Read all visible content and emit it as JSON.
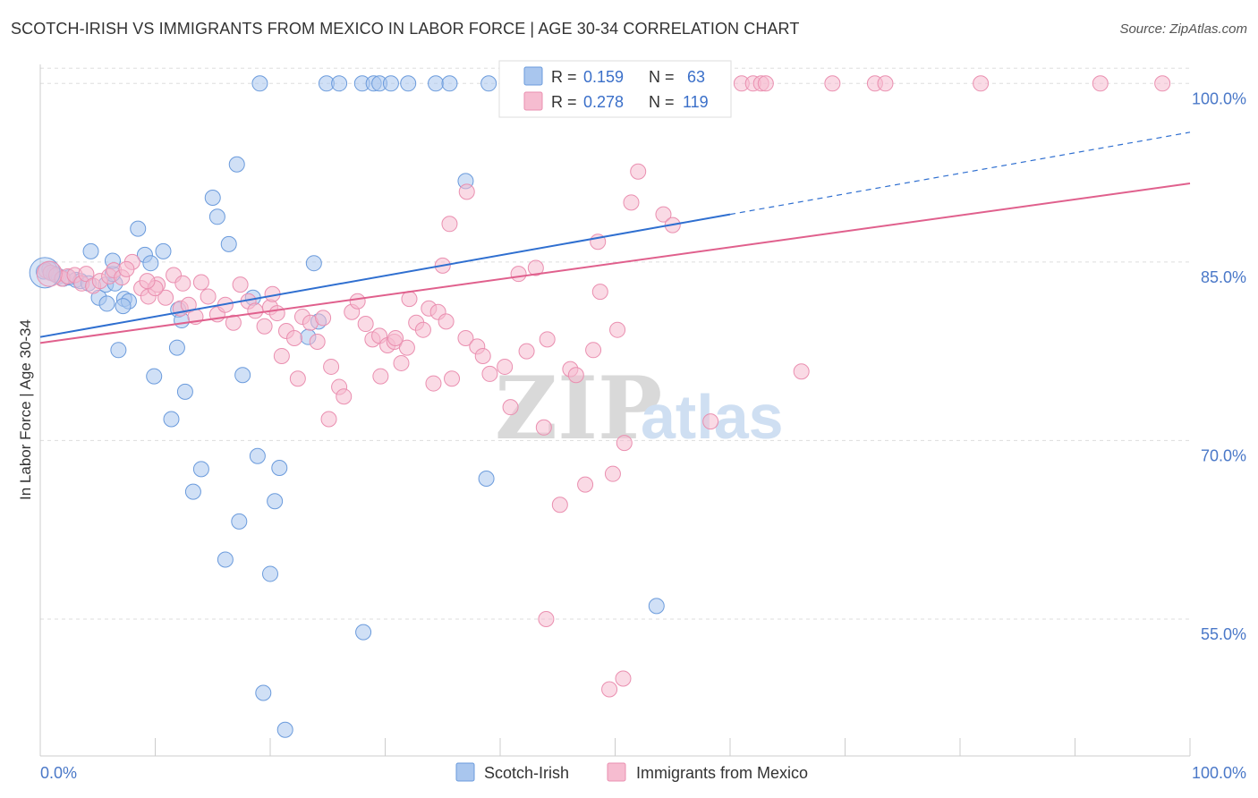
{
  "title": "SCOTCH-IRISH VS IMMIGRANTS FROM MEXICO IN LABOR FORCE | AGE 30-34 CORRELATION CHART",
  "source": "Source: ZipAtlas.com",
  "watermark": {
    "zip": "ZIP",
    "atlas": "atlas"
  },
  "colors": {
    "blue_fill": "#a9c6ee",
    "blue_stroke": "#6b9bdc",
    "blue_line": "#2f6fd0",
    "pink_fill": "#f6bcd0",
    "pink_stroke": "#ea8fb0",
    "pink_line": "#e0608d",
    "grid": "#dddddd",
    "axis_label": "#4a78c8"
  },
  "legend_top": {
    "rows": [
      {
        "r_label": "R = ",
        "r_value": "0.159",
        "n_label": "N = ",
        "n_value": "63"
      },
      {
        "r_label": "R = ",
        "r_value": "0.278",
        "n_label": "N = ",
        "n_value": "119"
      }
    ]
  },
  "legend_bottom": {
    "items": [
      "Scotch-Irish",
      "Immigrants from Mexico"
    ]
  },
  "chart_data": {
    "type": "scatter",
    "xlabel": "",
    "ylabel": "In Labor Force | Age 30-34",
    "x_tick_labels": [
      "0.0%",
      "100.0%"
    ],
    "y_tick_labels": [
      "100.0%",
      "85.0%",
      "70.0%",
      "55.0%"
    ],
    "y_ticks": [
      100,
      85,
      70,
      55
    ],
    "xlim": [
      0,
      100
    ],
    "ylim": [
      43.5,
      101.6
    ],
    "grid": true,
    "legend_placement": "top-center",
    "series": [
      {
        "name": "Scotch-Irish",
        "color_key": "blue",
        "R": 0.159,
        "N": 63,
        "trend": {
          "x0": 0,
          "y0": 78.7,
          "x1": 60,
          "y1": 89.0,
          "dash_to_x": 100,
          "dash_to_y": 95.9
        },
        "points": [
          [
            0.3,
            84.2
          ],
          [
            0.8,
            84.4
          ],
          [
            1.2,
            84.0
          ],
          [
            1.6,
            83.8
          ],
          [
            2.0,
            83.6
          ],
          [
            2.5,
            83.7
          ],
          [
            3.1,
            83.5
          ],
          [
            3.5,
            83.4
          ],
          [
            4.2,
            83.2
          ],
          [
            5.1,
            82.0
          ],
          [
            4.4,
            85.9
          ],
          [
            5.7,
            83.1
          ],
          [
            6.5,
            83.2
          ],
          [
            6.3,
            84.0
          ],
          [
            6.3,
            85.1
          ],
          [
            5.8,
            81.5
          ],
          [
            7.3,
            81.9
          ],
          [
            7.7,
            81.7
          ],
          [
            8.5,
            87.8
          ],
          [
            9.1,
            85.6
          ],
          [
            9.6,
            84.9
          ],
          [
            10.7,
            85.9
          ],
          [
            7.2,
            81.3
          ],
          [
            6.8,
            77.6
          ],
          [
            9.9,
            75.4
          ],
          [
            12.0,
            81.0
          ],
          [
            12.3,
            80.1
          ],
          [
            11.9,
            77.8
          ],
          [
            12.6,
            74.1
          ],
          [
            11.4,
            71.8
          ],
          [
            14.0,
            67.6
          ],
          [
            13.3,
            65.7
          ],
          [
            15.0,
            90.4
          ],
          [
            15.4,
            88.8
          ],
          [
            16.4,
            86.5
          ],
          [
            17.1,
            93.2
          ],
          [
            18.5,
            82.0
          ],
          [
            17.6,
            75.5
          ],
          [
            18.9,
            68.7
          ],
          [
            17.3,
            63.2
          ],
          [
            16.1,
            60.0
          ],
          [
            20.8,
            67.7
          ],
          [
            20.4,
            64.9
          ],
          [
            20.0,
            58.8
          ],
          [
            19.4,
            48.8
          ],
          [
            21.3,
            45.7
          ],
          [
            23.3,
            78.7
          ],
          [
            23.8,
            84.9
          ],
          [
            24.2,
            80.0
          ],
          [
            19.1,
            100
          ],
          [
            24.9,
            100
          ],
          [
            26.0,
            100
          ],
          [
            28.0,
            100
          ],
          [
            29.0,
            100
          ],
          [
            29.5,
            100
          ],
          [
            30.5,
            100
          ],
          [
            32.0,
            100
          ],
          [
            34.4,
            100
          ],
          [
            35.6,
            100
          ],
          [
            37.0,
            91.8
          ],
          [
            39.0,
            100
          ],
          [
            38.8,
            66.8
          ],
          [
            28.1,
            53.9
          ],
          [
            53.6,
            56.1
          ]
        ]
      },
      {
        "name": "Immigrants from Mexico",
        "color_key": "pink",
        "R": 0.278,
        "N": 119,
        "trend": {
          "x0": 0,
          "y0": 78.2,
          "x1": 100,
          "y1": 91.6
        },
        "points": [
          [
            0.5,
            84.3
          ],
          [
            0.9,
            84.1
          ],
          [
            1.4,
            83.9
          ],
          [
            1.9,
            83.6
          ],
          [
            2.4,
            83.8
          ],
          [
            3.0,
            83.9
          ],
          [
            3.6,
            83.2
          ],
          [
            4.0,
            84.0
          ],
          [
            4.6,
            83.0
          ],
          [
            5.2,
            83.4
          ],
          [
            6.0,
            83.8
          ],
          [
            6.4,
            84.3
          ],
          [
            7.1,
            83.7
          ],
          [
            8.0,
            85.0
          ],
          [
            7.5,
            84.4
          ],
          [
            8.8,
            82.8
          ],
          [
            9.4,
            82.1
          ],
          [
            10.2,
            83.1
          ],
          [
            10.9,
            82.0
          ],
          [
            11.6,
            83.9
          ],
          [
            12.2,
            81.1
          ],
          [
            12.9,
            81.4
          ],
          [
            13.5,
            80.4
          ],
          [
            14.0,
            83.3
          ],
          [
            14.6,
            82.1
          ],
          [
            15.4,
            80.6
          ],
          [
            16.1,
            81.4
          ],
          [
            16.8,
            79.9
          ],
          [
            17.4,
            83.1
          ],
          [
            18.1,
            81.7
          ],
          [
            18.7,
            80.9
          ],
          [
            19.5,
            79.6
          ],
          [
            20.0,
            81.2
          ],
          [
            20.6,
            80.7
          ],
          [
            21.4,
            79.2
          ],
          [
            22.1,
            78.6
          ],
          [
            22.8,
            80.4
          ],
          [
            23.5,
            79.9
          ],
          [
            24.1,
            78.3
          ],
          [
            24.6,
            80.3
          ],
          [
            25.3,
            76.2
          ],
          [
            26.0,
            74.5
          ],
          [
            26.4,
            73.7
          ],
          [
            27.1,
            80.8
          ],
          [
            27.6,
            81.7
          ],
          [
            28.3,
            79.8
          ],
          [
            28.9,
            78.5
          ],
          [
            29.5,
            78.8
          ],
          [
            30.2,
            78.0
          ],
          [
            30.8,
            78.3
          ],
          [
            31.4,
            76.5
          ],
          [
            32.1,
            81.9
          ],
          [
            32.7,
            79.9
          ],
          [
            33.3,
            79.3
          ],
          [
            33.8,
            81.1
          ],
          [
            34.6,
            80.8
          ],
          [
            35.3,
            80.0
          ],
          [
            35.8,
            75.2
          ],
          [
            37.0,
            78.6
          ],
          [
            38.0,
            77.9
          ],
          [
            38.5,
            77.1
          ],
          [
            39.1,
            75.6
          ],
          [
            40.4,
            76.2
          ],
          [
            40.9,
            72.8
          ],
          [
            41.6,
            84.0
          ],
          [
            42.3,
            77.5
          ],
          [
            43.1,
            84.5
          ],
          [
            43.8,
            71.1
          ],
          [
            44.1,
            78.5
          ],
          [
            45.2,
            64.6
          ],
          [
            46.1,
            76.0
          ],
          [
            46.6,
            75.5
          ],
          [
            47.4,
            66.3
          ],
          [
            48.1,
            77.6
          ],
          [
            48.7,
            82.5
          ],
          [
            48.5,
            86.7
          ],
          [
            49.8,
            67.2
          ],
          [
            50.2,
            79.3
          ],
          [
            50.8,
            69.8
          ],
          [
            52.0,
            92.6
          ],
          [
            54.2,
            89.0
          ],
          [
            55.0,
            88.1
          ],
          [
            58.3,
            71.6
          ],
          [
            35.6,
            88.2
          ],
          [
            37.1,
            90.9
          ],
          [
            51.4,
            90.0
          ],
          [
            44.0,
            55.0
          ],
          [
            49.5,
            49.1
          ],
          [
            50.7,
            50.0
          ],
          [
            66.2,
            75.8
          ],
          [
            72.6,
            100
          ],
          [
            73.5,
            100
          ],
          [
            68.9,
            100
          ],
          [
            81.8,
            100
          ],
          [
            92.2,
            100
          ],
          [
            97.6,
            100
          ],
          [
            61.0,
            100
          ],
          [
            62.0,
            100
          ],
          [
            62.7,
            100
          ],
          [
            63.1,
            100
          ],
          [
            55.2,
            100
          ],
          [
            56.5,
            100
          ],
          [
            57.8,
            100
          ],
          [
            58.9,
            100
          ],
          [
            51.0,
            100
          ],
          [
            52.5,
            100
          ],
          [
            53.3,
            100
          ],
          [
            48.1,
            100
          ],
          [
            46.5,
            100
          ],
          [
            35.0,
            84.7
          ],
          [
            34.2,
            74.8
          ],
          [
            31.9,
            77.8
          ],
          [
            30.9,
            78.6
          ],
          [
            29.6,
            75.4
          ],
          [
            25.1,
            71.8
          ],
          [
            22.4,
            75.2
          ],
          [
            21.0,
            77.1
          ],
          [
            20.2,
            82.3
          ],
          [
            12.4,
            83.2
          ],
          [
            10.0,
            82.8
          ],
          [
            9.3,
            83.4
          ]
        ]
      }
    ]
  }
}
